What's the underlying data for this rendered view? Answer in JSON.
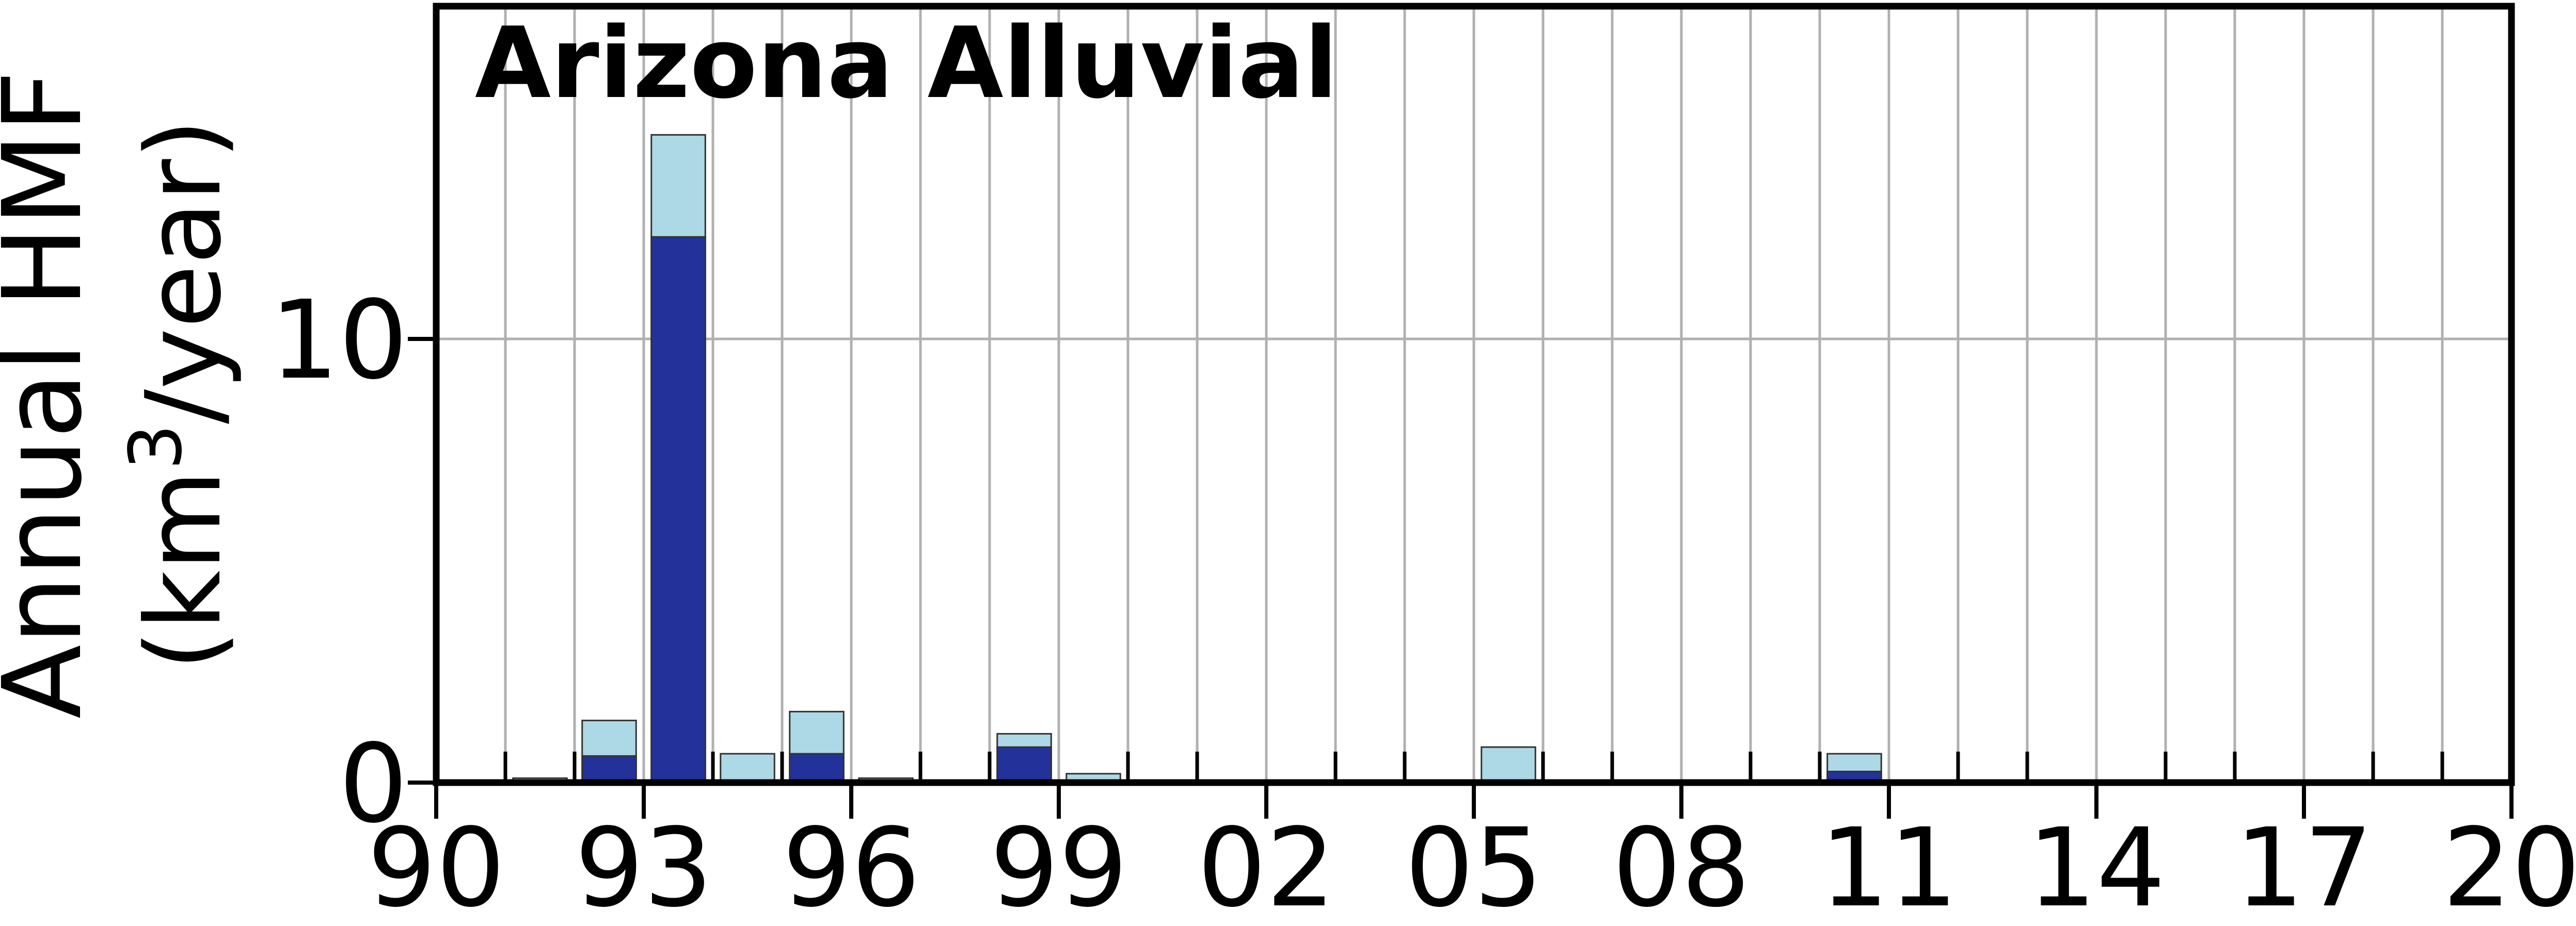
{
  "chart_data": {
    "type": "bar",
    "title": "Arizona Alluvial",
    "ylabel_line1": "Annual HMF",
    "ylabel_line2_prefix": "(km",
    "ylabel_line2_superscript": "3",
    "ylabel_line2_suffix": "/year)",
    "xlabel": "",
    "xlim": [
      1990,
      2020
    ],
    "ylim": [
      0,
      17.5
    ],
    "xticks": [
      {
        "value": 1990,
        "label": "90"
      },
      {
        "value": 1993,
        "label": "93"
      },
      {
        "value": 1996,
        "label": "96"
      },
      {
        "value": 1999,
        "label": "99"
      },
      {
        "value": 2002,
        "label": "02"
      },
      {
        "value": 2005,
        "label": "05"
      },
      {
        "value": 2008,
        "label": "08"
      },
      {
        "value": 2011,
        "label": "11"
      },
      {
        "value": 2014,
        "label": "14"
      },
      {
        "value": 2017,
        "label": "17"
      },
      {
        "value": 2020,
        "label": "20"
      }
    ],
    "yticks": [
      {
        "value": 0,
        "label": "0"
      },
      {
        "value": 10,
        "label": "10"
      }
    ],
    "grid": true,
    "legend": "none",
    "bar_years": [
      1991,
      1992,
      1993,
      1994,
      1995,
      1996,
      1997,
      1998,
      1999,
      2005,
      2010
    ],
    "series": [
      {
        "color": "#add8e6",
        "values": [
          0.1,
          1.4,
          14.6,
          0.65,
          1.6,
          0.1,
          0.05,
          1.1,
          0.2,
          0.8,
          0.65
        ]
      },
      {
        "color": "#23319a",
        "values": [
          0.0,
          0.6,
          12.3,
          0.0,
          0.65,
          0.0,
          0.0,
          0.8,
          0.05,
          0.0,
          0.25
        ]
      }
    ]
  }
}
